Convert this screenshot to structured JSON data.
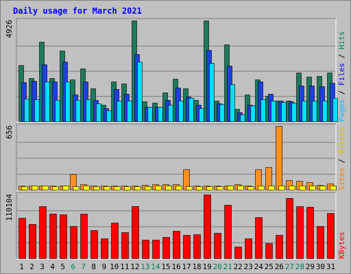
{
  "chart_data": {
    "type": "bar",
    "title": "Daily usage for March 2021",
    "categories": [
      "1",
      "2",
      "3",
      "4",
      "5",
      "6",
      "7",
      "8",
      "9",
      "10",
      "11",
      "12",
      "13",
      "14",
      "15",
      "16",
      "17",
      "18",
      "19",
      "20",
      "21",
      "22",
      "23",
      "24",
      "25",
      "26",
      "27",
      "28",
      "29",
      "30",
      "31"
    ],
    "weekend_days": [
      "6",
      "7",
      "13",
      "14",
      "20",
      "21",
      "27",
      "28"
    ],
    "panels": [
      {
        "id": "top",
        "ymax_label": "4926",
        "ylim": [
          0,
          4926
        ],
        "legend": [
          "Pages",
          "Files",
          "Hits"
        ],
        "series": [
          {
            "name": "Hits",
            "color": "#1e7a5a",
            "values": [
              2740,
              2100,
              3880,
              2100,
              3440,
              2050,
              2580,
              1600,
              800,
              1950,
              1850,
              4926,
              960,
              920,
              1400,
              2080,
              1620,
              1030,
              4926,
              1010,
              3760,
              600,
              1300,
              2040,
              1240,
              1000,
              1000,
              2390,
              2190,
              2210,
              2370
            ]
          },
          {
            "name": "Files",
            "color": "#1e40e0",
            "values": [
              1920,
              1990,
              2780,
              1960,
              2920,
              1310,
              1930,
              1030,
              640,
              1590,
              1330,
              3290,
              700,
              710,
              1050,
              1650,
              1200,
              790,
              3480,
              880,
              2730,
              430,
              790,
              1930,
              1330,
              1000,
              960,
              1750,
              1740,
              1710,
              1860
            ]
          },
          {
            "name": "Pages",
            "color": "#00e0ff",
            "values": [
              1120,
              1060,
              1960,
              1040,
              1930,
              1050,
              1080,
              870,
              530,
              1010,
              990,
              2920,
              690,
              710,
              790,
              1020,
              1150,
              650,
              2850,
              840,
              1800,
              350,
              780,
              1070,
              1000,
              950,
              910,
              1020,
              1010,
              990,
              1140
            ]
          }
        ]
      },
      {
        "id": "middle",
        "ymax_label": "656",
        "ylim": [
          0,
          656
        ],
        "legend": [
          "Sites",
          "Visits"
        ],
        "series": [
          {
            "name": "Visits",
            "color": "#ff9020",
            "values": [
              40,
              45,
              45,
              40,
              45,
              165,
              55,
              45,
              45,
              45,
              40,
              45,
              50,
              55,
              55,
              55,
              215,
              45,
              40,
              40,
              45,
              55,
              45,
              215,
              230,
              656,
              100,
              90,
              75,
              50,
              65
            ]
          },
          {
            "name": "Sites",
            "color": "#ffff00",
            "values": [
              36,
              40,
              40,
              35,
              40,
              38,
              40,
              38,
              38,
              38,
              36,
              38,
              38,
              42,
              42,
              42,
              38,
              38,
              36,
              36,
              40,
              42,
              38,
              42,
              42,
              45,
              45,
              42,
              42,
              40,
              42
            ]
          }
        ]
      },
      {
        "id": "bottom",
        "ymax_label": "110104",
        "ylim": [
          0,
          110104
        ],
        "legend": [
          "KBytes"
        ],
        "series": [
          {
            "name": "KBytes",
            "color": "#ff0000",
            "values": [
              69500,
              59000,
              90500,
              77000,
              75500,
              55500,
              77500,
              48000,
              34500,
              61500,
              44500,
              89500,
              32500,
              32500,
              36500,
              47000,
              40000,
              41500,
              110104,
              43500,
              92500,
              20500,
              34500,
              71500,
              25500,
              40500,
              104500,
              89500,
              89000,
              55500,
              78000
            ]
          }
        ]
      }
    ],
    "colors": {
      "background": "#c0c0c0",
      "title": "#0000ff",
      "weekday_label": "#000000",
      "weekend_label": "#008060",
      "gridline": "#7a7a7a",
      "legend_pages": "#00c0ff",
      "legend_files": "#0000ff",
      "legend_hits": "#008060",
      "legend_sites": "#ff8000",
      "legend_visits": "#e0c000",
      "legend_kbytes": "#ff0000"
    }
  }
}
